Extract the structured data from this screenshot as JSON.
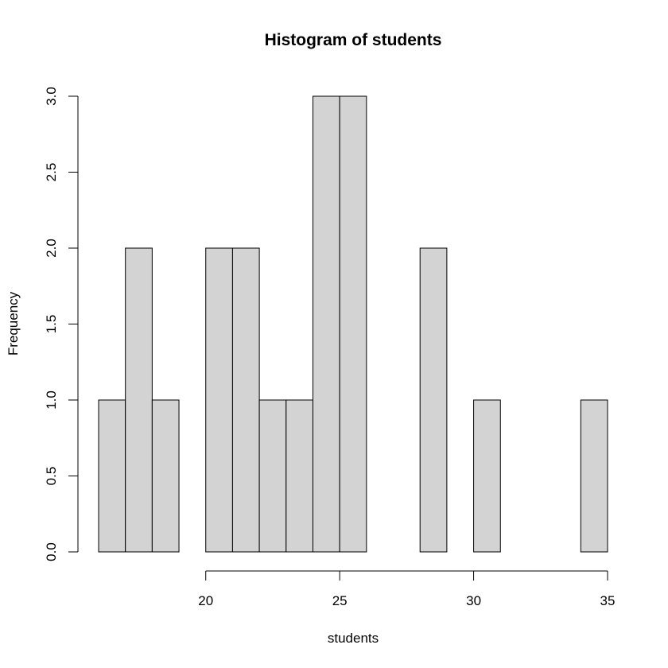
{
  "chart_data": {
    "type": "bar",
    "title": "Histogram of students",
    "xlabel": "students",
    "ylabel": "Frequency",
    "bins": [
      {
        "start": 16,
        "end": 17,
        "count": 1
      },
      {
        "start": 17,
        "end": 18,
        "count": 2
      },
      {
        "start": 18,
        "end": 19,
        "count": 1
      },
      {
        "start": 19,
        "end": 20,
        "count": 0
      },
      {
        "start": 20,
        "end": 21,
        "count": 2
      },
      {
        "start": 21,
        "end": 22,
        "count": 2
      },
      {
        "start": 22,
        "end": 23,
        "count": 1
      },
      {
        "start": 23,
        "end": 24,
        "count": 1
      },
      {
        "start": 24,
        "end": 25,
        "count": 3
      },
      {
        "start": 25,
        "end": 26,
        "count": 3
      },
      {
        "start": 26,
        "end": 27,
        "count": 0
      },
      {
        "start": 27,
        "end": 28,
        "count": 0
      },
      {
        "start": 28,
        "end": 29,
        "count": 2
      },
      {
        "start": 29,
        "end": 30,
        "count": 0
      },
      {
        "start": 30,
        "end": 31,
        "count": 1
      },
      {
        "start": 31,
        "end": 32,
        "count": 0
      },
      {
        "start": 32,
        "end": 33,
        "count": 0
      },
      {
        "start": 33,
        "end": 34,
        "count": 0
      },
      {
        "start": 34,
        "end": 35,
        "count": 1
      }
    ],
    "xlim": [
      16,
      35
    ],
    "ylim": [
      0,
      3
    ],
    "x_ticks": [
      {
        "value": 20,
        "label": "20"
      },
      {
        "value": 25,
        "label": "25"
      },
      {
        "value": 30,
        "label": "30"
      },
      {
        "value": 35,
        "label": "35"
      }
    ],
    "y_ticks": [
      {
        "value": 0,
        "label": "0.0"
      },
      {
        "value": 0.5,
        "label": "0.5"
      },
      {
        "value": 1,
        "label": "1.0"
      },
      {
        "value": 1.5,
        "label": "1.5"
      },
      {
        "value": 2,
        "label": "2.0"
      },
      {
        "value": 2.5,
        "label": "2.5"
      },
      {
        "value": 3,
        "label": "3.0"
      }
    ],
    "grid": false,
    "colors": {
      "bar_fill": "#d3d3d3",
      "bar_stroke": "#000000"
    }
  }
}
